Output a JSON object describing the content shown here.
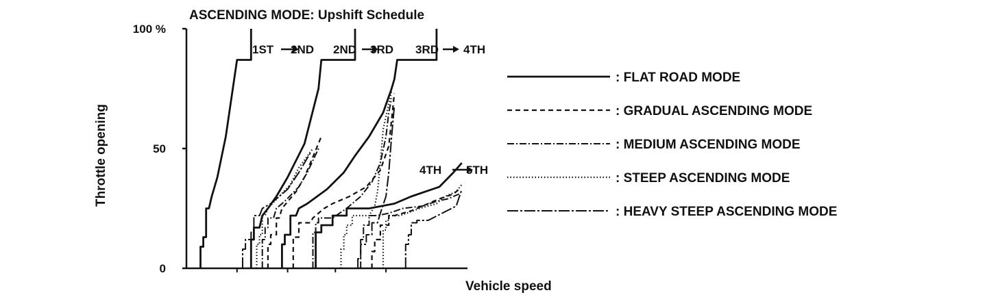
{
  "chart_data": {
    "type": "line",
    "title": "ASCENDING MODE: Upshift Schedule",
    "xlabel": "Vehicle speed",
    "ylabel": "Throttle opening",
    "ylim": [
      0,
      100
    ],
    "xlim": [
      0,
      100
    ],
    "y_ticks": [
      {
        "value": 100,
        "label": "100 %"
      },
      {
        "value": 50,
        "label": "50"
      },
      {
        "value": 0,
        "label": "0"
      }
    ],
    "x_ticks": [
      18,
      36,
      53,
      71
    ],
    "grid": false,
    "legend_position": "right",
    "shift_labels": [
      {
        "from": "1ST",
        "to": "2ND"
      },
      {
        "from": "2ND",
        "to": "3RD"
      },
      {
        "from": "3RD",
        "to": "4TH"
      },
      {
        "from": "4TH",
        "to": "5TH"
      }
    ],
    "series": [
      {
        "name": ": FLAT ROAD MODE",
        "style": "solid",
        "curves": [
          [
            [
              5,
              0
            ],
            [
              5,
              9
            ],
            [
              6,
              9
            ],
            [
              6,
              13
            ],
            [
              7,
              13
            ],
            [
              7,
              25
            ],
            [
              8,
              25
            ],
            [
              9,
              30
            ],
            [
              11,
              38
            ],
            [
              14,
              55
            ],
            [
              18,
              87
            ],
            [
              23,
              87
            ],
            [
              23,
              100
            ]
          ],
          [
            [
              23,
              0
            ],
            [
              23,
              12
            ],
            [
              24,
              12
            ],
            [
              24,
              17
            ],
            [
              26,
              17
            ],
            [
              27,
              22
            ],
            [
              29,
              25
            ],
            [
              32,
              30
            ],
            [
              36,
              38
            ],
            [
              42,
              52
            ],
            [
              47,
              75
            ],
            [
              48,
              87
            ],
            [
              60,
              87
            ],
            [
              60,
              100
            ]
          ],
          [
            [
              34,
              0
            ],
            [
              34,
              10
            ],
            [
              35,
              10
            ],
            [
              35,
              14
            ],
            [
              37,
              14
            ],
            [
              37,
              22
            ],
            [
              39,
              22
            ],
            [
              40,
              25
            ],
            [
              43,
              27
            ],
            [
              50,
              33
            ],
            [
              56,
              40
            ],
            [
              60,
              47
            ],
            [
              65,
              55
            ],
            [
              70,
              65
            ],
            [
              73,
              75
            ],
            [
              74,
              79
            ],
            [
              75,
              87
            ],
            [
              89,
              87
            ],
            [
              89,
              100
            ]
          ],
          [
            [
              46,
              0
            ],
            [
              46,
              15
            ],
            [
              48,
              15
            ],
            [
              48,
              18
            ],
            [
              52,
              18
            ],
            [
              52,
              22
            ],
            [
              57,
              22
            ],
            [
              57,
              25
            ],
            [
              65,
              25
            ],
            [
              74,
              27
            ],
            [
              80,
              30
            ],
            [
              90,
              34
            ],
            [
              95,
              40
            ],
            [
              98,
              44
            ]
          ]
        ]
      },
      {
        "name": ": GRADUAL ASCENDING MODE",
        "style": "dashed",
        "curves": [
          [
            [
              29,
              0
            ],
            [
              29,
              10
            ],
            [
              30,
              10
            ],
            [
              30,
              14
            ],
            [
              32,
              14
            ],
            [
              32,
              21
            ],
            [
              33,
              21
            ],
            [
              34,
              25
            ],
            [
              39,
              32
            ],
            [
              42,
              38
            ],
            [
              48,
              55
            ]
          ],
          [
            [
              38,
              0
            ],
            [
              38,
              13
            ],
            [
              40,
              13
            ],
            [
              40,
              19
            ],
            [
              44,
              19
            ],
            [
              45,
              21
            ],
            [
              49,
              25
            ],
            [
              52,
              27
            ],
            [
              58,
              30
            ],
            [
              64,
              34
            ],
            [
              69,
              41
            ],
            [
              72,
              51
            ],
            [
              73,
              62
            ],
            [
              74,
              73
            ]
          ],
          [
            [
              66,
              0
            ],
            [
              66,
              7
            ],
            [
              67,
              7
            ],
            [
              67,
              12
            ],
            [
              69,
              12
            ],
            [
              69,
              18
            ],
            [
              72,
              18
            ],
            [
              72,
              22
            ],
            [
              74,
              22
            ],
            [
              80,
              24
            ],
            [
              86,
              27
            ],
            [
              90,
              29
            ],
            [
              95,
              31
            ],
            [
              97,
              33
            ]
          ]
        ]
      },
      {
        "name": ": MEDIUM ASCENDING MODE",
        "style": "dashdot",
        "curves": [
          [
            [
              27,
              0
            ],
            [
              27,
              12
            ],
            [
              28,
              12
            ],
            [
              28,
              17
            ],
            [
              29,
              17
            ],
            [
              29,
              21
            ],
            [
              31,
              21
            ],
            [
              32,
              25
            ],
            [
              35,
              28
            ],
            [
              40,
              34
            ],
            [
              43,
              40
            ],
            [
              47,
              50
            ]
          ],
          [
            [
              45,
              0
            ],
            [
              45,
              15
            ],
            [
              46,
              15
            ],
            [
              46,
              19
            ],
            [
              47,
              19
            ],
            [
              47,
              21
            ],
            [
              52,
              21
            ],
            [
              57,
              25
            ],
            [
              62,
              30
            ],
            [
              66,
              36
            ],
            [
              69,
              44
            ],
            [
              71,
              55
            ],
            [
              72,
              65
            ],
            [
              73,
              71
            ]
          ],
          [
            [
              62,
              0
            ],
            [
              62,
              12
            ],
            [
              63,
              12
            ],
            [
              63,
              18
            ],
            [
              65,
              18
            ],
            [
              65,
              22
            ],
            [
              68,
              22
            ],
            [
              72,
              23
            ],
            [
              77,
              25
            ],
            [
              84,
              26
            ],
            [
              89,
              28
            ],
            [
              93,
              29
            ],
            [
              97,
              31
            ]
          ]
        ]
      },
      {
        "name": ": STEEP ASCENDING MODE",
        "style": "dotted",
        "curves": [
          [
            [
              25,
              0
            ],
            [
              25,
              10
            ],
            [
              26,
              10
            ],
            [
              26,
              14
            ],
            [
              27,
              14
            ],
            [
              27,
              22
            ],
            [
              28,
              22
            ],
            [
              29,
              25
            ],
            [
              33,
              30
            ],
            [
              37,
              35
            ],
            [
              40,
              42
            ],
            [
              45,
              50
            ]
          ],
          [
            [
              55,
              0
            ],
            [
              55,
              8
            ],
            [
              56,
              8
            ],
            [
              56,
              14
            ],
            [
              57,
              14
            ],
            [
              57,
              18
            ],
            [
              59,
              18
            ],
            [
              59,
              22
            ],
            [
              65,
              22
            ],
            [
              67,
              26
            ],
            [
              68,
              32
            ],
            [
              69,
              44
            ],
            [
              70,
              58
            ],
            [
              73,
              74
            ]
          ],
          [
            [
              70,
              0
            ],
            [
              70,
              16
            ],
            [
              71,
              16
            ],
            [
              71,
              20
            ],
            [
              72,
              20
            ],
            [
              72,
              22
            ],
            [
              76,
              22
            ],
            [
              83,
              25
            ],
            [
              89,
              27
            ],
            [
              92,
              30
            ],
            [
              96,
              32
            ],
            [
              98,
              35
            ]
          ]
        ]
      },
      {
        "name": ": HEAVY STEEP ASCENDING MODE",
        "style": "longdashdot",
        "curves": [
          [
            [
              20,
              0
            ],
            [
              20,
              8
            ],
            [
              21,
              8
            ],
            [
              21,
              12
            ],
            [
              23,
              12
            ],
            [
              23,
              15
            ],
            [
              24,
              15
            ],
            [
              24,
              22
            ],
            [
              26,
              22
            ],
            [
              27,
              25
            ],
            [
              30,
              27
            ],
            [
              36,
              33
            ],
            [
              40,
              40
            ],
            [
              44,
              48
            ]
          ],
          [
            [
              61,
              0
            ],
            [
              61,
              4
            ],
            [
              62,
              4
            ],
            [
              62,
              10
            ],
            [
              64,
              10
            ],
            [
              64,
              14
            ],
            [
              66,
              14
            ],
            [
              66,
              19
            ],
            [
              68,
              19
            ],
            [
              69,
              23
            ],
            [
              71,
              30
            ],
            [
              72,
              40
            ],
            [
              73,
              55
            ],
            [
              74,
              68
            ]
          ],
          [
            [
              78,
              0
            ],
            [
              78,
              10
            ],
            [
              79,
              10
            ],
            [
              79,
              14
            ],
            [
              80,
              14
            ],
            [
              80,
              19
            ],
            [
              82,
              19
            ],
            [
              82,
              20
            ],
            [
              86,
              20
            ],
            [
              91,
              23
            ],
            [
              96,
              26
            ],
            [
              98,
              33
            ]
          ]
        ]
      }
    ]
  }
}
